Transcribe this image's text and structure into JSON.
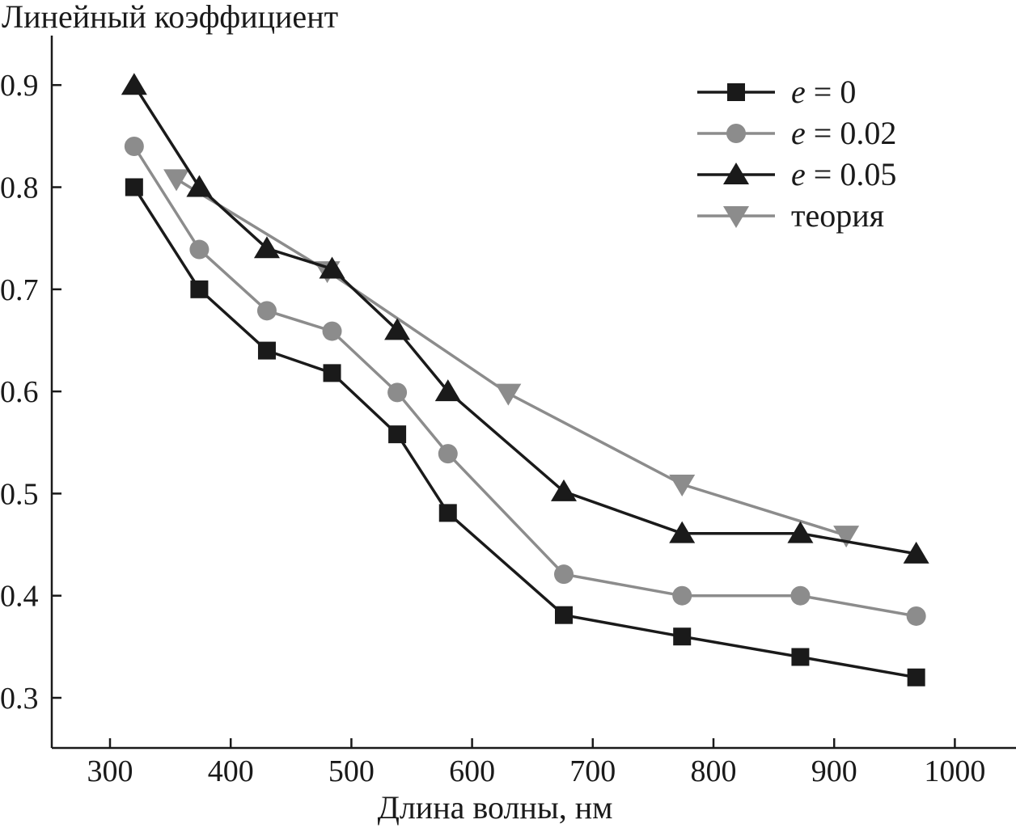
{
  "chart_data": {
    "type": "line",
    "title": "",
    "ylabel": "Линейный коэффициент",
    "xlabel": "Длина волны, нм",
    "xlim": [
      250,
      1050
    ],
    "ylim": [
      0.25,
      0.95
    ],
    "xticks": [
      300,
      400,
      500,
      600,
      700,
      800,
      900,
      1000
    ],
    "yticks": [
      0.3,
      0.4,
      0.5,
      0.6,
      0.7,
      0.8,
      0.9
    ],
    "xtick_labels": [
      "300",
      "400",
      "500",
      "600",
      "700",
      "800",
      "900",
      "1000"
    ],
    "ytick_labels": [
      "0.3",
      "0.4",
      "0.5",
      "0.6",
      "0.7",
      "0.8",
      "0.9"
    ],
    "grid": false,
    "legend_position": "top-right",
    "series": [
      {
        "name": "e = 0",
        "legend_var": "e",
        "legend_rest": " = 0",
        "marker": "square",
        "color": "#1a1a1a",
        "x": [
          320,
          374,
          430,
          484,
          538,
          580,
          676,
          774,
          872,
          968
        ],
        "y": [
          0.8,
          0.7,
          0.64,
          0.618,
          0.558,
          0.481,
          0.381,
          0.36,
          0.34,
          0.32
        ]
      },
      {
        "name": "e = 0.02",
        "legend_var": "e",
        "legend_rest": " = 0.02",
        "marker": "circle",
        "color": "#8c8c8c",
        "x": [
          320,
          374,
          430,
          484,
          538,
          580,
          676,
          774,
          872,
          968
        ],
        "y": [
          0.84,
          0.739,
          0.679,
          0.659,
          0.599,
          0.539,
          0.421,
          0.4,
          0.4,
          0.38
        ]
      },
      {
        "name": "e = 0.05",
        "legend_var": "e",
        "legend_rest": " = 0.05",
        "marker": "triangle-up",
        "color": "#1a1a1a",
        "x": [
          320,
          374,
          430,
          484,
          538,
          580,
          676,
          774,
          872,
          968
        ],
        "y": [
          0.9,
          0.8,
          0.74,
          0.72,
          0.66,
          0.6,
          0.502,
          0.461,
          0.461,
          0.441
        ]
      },
      {
        "name": "теория",
        "legend_var": "",
        "legend_rest": "теория",
        "marker": "triangle-down",
        "color": "#8c8c8c",
        "x": [
          355,
          480,
          630,
          774,
          910
        ],
        "y": [
          0.808,
          0.718,
          0.598,
          0.509,
          0.459
        ]
      }
    ]
  }
}
